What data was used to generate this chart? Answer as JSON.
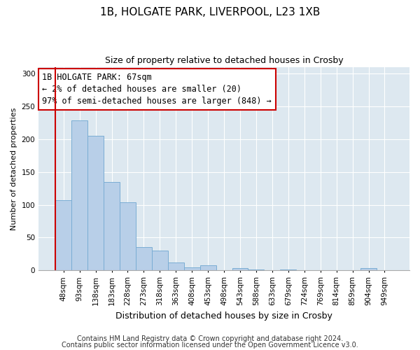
{
  "title": "1B, HOLGATE PARK, LIVERPOOL, L23 1XB",
  "subtitle": "Size of property relative to detached houses in Crosby",
  "xlabel": "Distribution of detached houses by size in Crosby",
  "ylabel": "Number of detached properties",
  "bar_labels": [
    "48sqm",
    "93sqm",
    "138sqm",
    "183sqm",
    "228sqm",
    "273sqm",
    "318sqm",
    "363sqm",
    "408sqm",
    "453sqm",
    "498sqm",
    "543sqm",
    "588sqm",
    "633sqm",
    "679sqm",
    "724sqm",
    "769sqm",
    "814sqm",
    "859sqm",
    "904sqm",
    "949sqm"
  ],
  "bar_values": [
    107,
    229,
    205,
    135,
    104,
    36,
    30,
    12,
    5,
    8,
    0,
    4,
    2,
    0,
    2,
    0,
    0,
    0,
    0,
    4,
    0
  ],
  "bar_color": "#b8cfe8",
  "bar_edgecolor": "#7aadd4",
  "ylim": [
    0,
    310
  ],
  "yticks": [
    0,
    50,
    100,
    150,
    200,
    250,
    300
  ],
  "annotation_text_line1": "1B HOLGATE PARK: 67sqm",
  "annotation_text_line2": "← 2% of detached houses are smaller (20)",
  "annotation_text_line3": "97% of semi-detached houses are larger (848) →",
  "marker_line_color": "#cc0000",
  "footer1": "Contains HM Land Registry data © Crown copyright and database right 2024.",
  "footer2": "Contains public sector information licensed under the Open Government Licence v3.0.",
  "fig_bg_color": "#ffffff",
  "plot_bg_color": "#dde8f0",
  "grid_color": "#ffffff",
  "title_fontsize": 11,
  "subtitle_fontsize": 9,
  "xlabel_fontsize": 9,
  "ylabel_fontsize": 8,
  "tick_fontsize": 7.5,
  "annotation_fontsize": 8.5,
  "footer_fontsize": 7
}
